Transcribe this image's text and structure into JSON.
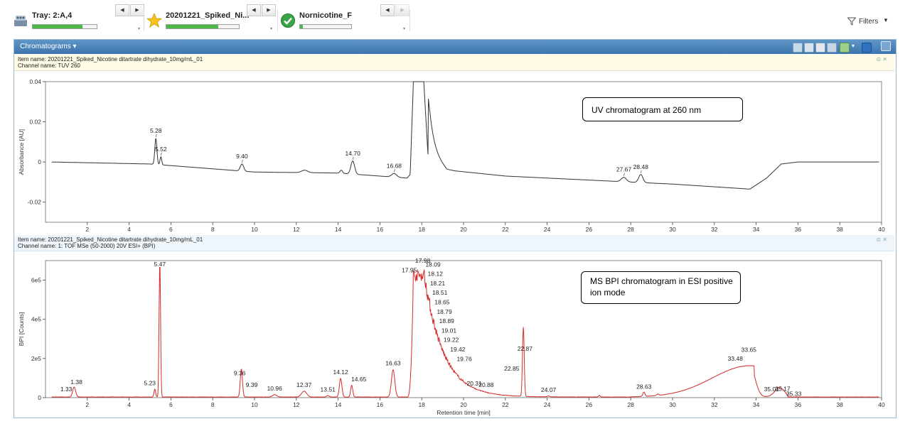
{
  "toolbar": {
    "items": [
      {
        "label": "Tray: 2:A,4",
        "progress": 0.78,
        "icon": "tray-icon"
      },
      {
        "label": "20201221_Spiked_Ni...",
        "progress": 0.72,
        "icon": "star-icon"
      },
      {
        "label": "Nornicotine_F",
        "progress": 0.05,
        "icon": "check-icon"
      }
    ],
    "nav_prev": "◀",
    "nav_next": "▶",
    "filters_label": "Filters"
  },
  "panel": {
    "title": "Chromatograms ▾"
  },
  "colors": {
    "uv_trace": "#333333",
    "ms_trace": "#d42a2a",
    "header_blue": "#4a82bb"
  },
  "chart_data": [
    {
      "type": "line",
      "item_name": "Item name: 20201221_Spiked_Nicotine ditartrate dihydrate_10mg/mL_01",
      "channel_name": "Channel name: TUV 260",
      "xlim": [
        0,
        40
      ],
      "ylim": [
        -0.03,
        0.04
      ],
      "xticks": [
        2,
        4,
        6,
        8,
        10,
        12,
        14,
        16,
        18,
        20,
        22,
        24,
        26,
        28,
        30,
        32,
        34,
        36,
        38,
        40
      ],
      "yticks": [
        {
          "v": 0.04,
          "label": "0.04"
        },
        {
          "v": 0.02,
          "label": "0.02"
        },
        {
          "v": 0,
          "label": "0"
        },
        {
          "v": -0.02,
          "label": "-0.02"
        }
      ],
      "ylabel": "Absorbance [AU]",
      "xlabel": "",
      "annotation": "UV chromatogram at 260 nm",
      "baseline": [
        [
          0.3,
          0.0
        ],
        [
          5.0,
          -0.001
        ],
        [
          10,
          -0.005
        ],
        [
          14,
          -0.0055
        ],
        [
          17.3,
          -0.008
        ],
        [
          18.4,
          0.005
        ],
        [
          19.2,
          -0.004
        ],
        [
          22,
          -0.007
        ],
        [
          26,
          -0.009
        ],
        [
          30,
          -0.011
        ],
        [
          33.7,
          -0.0135
        ],
        [
          34.5,
          -0.008
        ],
        [
          35.2,
          -0.001
        ],
        [
          36,
          0.0
        ],
        [
          39.9,
          0.0
        ]
      ],
      "peaks": [
        {
          "rt": 5.28,
          "label": "5.28",
          "height": 0.013,
          "width": 0.05
        },
        {
          "rt": 5.52,
          "label": "5.52",
          "height": 0.004,
          "width": 0.04
        },
        {
          "rt": 9.4,
          "label": "9.40",
          "height": 0.0035,
          "width": 0.08
        },
        {
          "rt": 12.4,
          "label": "",
          "height": 0.0012,
          "width": 0.15
        },
        {
          "rt": 14.15,
          "label": "",
          "height": 0.0015,
          "width": 0.06
        },
        {
          "rt": 14.7,
          "label": "14.70",
          "height": 0.0065,
          "width": 0.09
        },
        {
          "rt": 16.68,
          "label": "16.68",
          "height": 0.0018,
          "width": 0.12
        },
        {
          "rt": 27.67,
          "label": "27.67",
          "height": 0.0022,
          "width": 0.12
        },
        {
          "rt": 28.48,
          "label": "28.48",
          "height": 0.004,
          "width": 0.1
        }
      ],
      "major_peak": {
        "start": 17.45,
        "apex_start": 17.6,
        "apex_end": 18.1,
        "end": 18.3,
        "offscale": true
      }
    },
    {
      "type": "line",
      "item_name": "Item name: 20201221_Spiked_Nicotine ditartrate dihydrate_10mg/mL_01",
      "channel_name": "Channel name: 1: TOF MSe (50-2000) 20V ESI+ (BPI)",
      "xlim": [
        0,
        40
      ],
      "ylim": [
        0,
        700000
      ],
      "xticks": [
        2,
        4,
        6,
        8,
        10,
        12,
        14,
        16,
        18,
        20,
        22,
        24,
        26,
        28,
        30,
        32,
        34,
        36,
        38,
        40
      ],
      "yticks": [
        {
          "v": 0,
          "label": "0"
        },
        {
          "v": 200000,
          "label": "2e5"
        },
        {
          "v": 400000,
          "label": "4e5"
        },
        {
          "v": 600000,
          "label": "6e5"
        }
      ],
      "ylabel": "BPI [Counts]",
      "xlabel": "Retention time [min]",
      "annotation": "MS BPI chromatogram in ESI positive ion mode",
      "peaks": [
        {
          "rt": 1.33,
          "label": "1.33",
          "height": 8000,
          "width": 0.06
        },
        {
          "rt": 1.38,
          "label": "1.38",
          "height": 45000,
          "width": 0.07
        },
        {
          "rt": 5.23,
          "label": "5.23",
          "height": 40000,
          "width": 0.04
        },
        {
          "rt": 5.47,
          "label": "5.47",
          "height": 690000,
          "width": 0.035
        },
        {
          "rt": 9.36,
          "label": "9.36",
          "height": 90000,
          "width": 0.05
        },
        {
          "rt": 9.39,
          "label": "9.39",
          "height": 60000,
          "width": 0.05
        },
        {
          "rt": 10.96,
          "label": "10.96",
          "height": 12000,
          "width": 0.1
        },
        {
          "rt": 12.37,
          "label": "12.37",
          "height": 30000,
          "width": 0.12
        },
        {
          "rt": 13.51,
          "label": "13.51",
          "height": 7000,
          "width": 0.06
        },
        {
          "rt": 14.12,
          "label": "14.12",
          "height": 95000,
          "width": 0.06
        },
        {
          "rt": 14.65,
          "label": "14.65",
          "height": 60000,
          "width": 0.05
        },
        {
          "rt": 16.63,
          "label": "16.63",
          "height": 140000,
          "width": 0.08
        },
        {
          "rt": 22.85,
          "label": "22.85",
          "height": 150000,
          "width": 0.04
        },
        {
          "rt": 22.87,
          "label": "22.87",
          "height": 215000,
          "width": 0.04
        },
        {
          "rt": 24.07,
          "label": "24.07",
          "height": 5000,
          "width": 0.05
        },
        {
          "rt": 26.5,
          "label": "",
          "height": 8000,
          "width": 0.04
        },
        {
          "rt": 28.63,
          "label": "28.63",
          "height": 22000,
          "width": 0.05
        },
        {
          "rt": 29.3,
          "label": "",
          "height": 7000,
          "width": 0.05
        },
        {
          "rt": 35.01,
          "label": "35.01",
          "height": 8000,
          "width": 0.1
        },
        {
          "rt": 35.17,
          "label": "35.17",
          "height": 10000,
          "width": 0.1
        },
        {
          "rt": 35.33,
          "label": "35.33",
          "height": 6000,
          "width": 0.1
        },
        {
          "rt": 33.48,
          "label": "33.48",
          "height": 0,
          "width": 0.1
        },
        {
          "rt": 33.65,
          "label": "33.65",
          "height": 0,
          "width": 0.1
        }
      ],
      "main_peak_labels": [
        {
          "rt": 17.95,
          "label": "17.95"
        },
        {
          "rt": 17.98,
          "label": "17.98"
        },
        {
          "rt": 18.09,
          "label": "18.09"
        },
        {
          "rt": 18.12,
          "label": "18.12"
        },
        {
          "rt": 18.21,
          "label": "18.21"
        },
        {
          "rt": 18.51,
          "label": "18.51"
        },
        {
          "rt": 18.65,
          "label": "18.65"
        },
        {
          "rt": 18.79,
          "label": "18.79"
        },
        {
          "rt": 18.89,
          "label": "18.89"
        },
        {
          "rt": 19.01,
          "label": "19.01"
        },
        {
          "rt": 19.22,
          "label": "19.22"
        },
        {
          "rt": 19.42,
          "label": "19.42"
        },
        {
          "rt": 19.76,
          "label": "19.76"
        },
        {
          "rt": 20.31,
          "label": "20.31"
        },
        {
          "rt": 20.88,
          "label": "20.88"
        }
      ]
    }
  ]
}
